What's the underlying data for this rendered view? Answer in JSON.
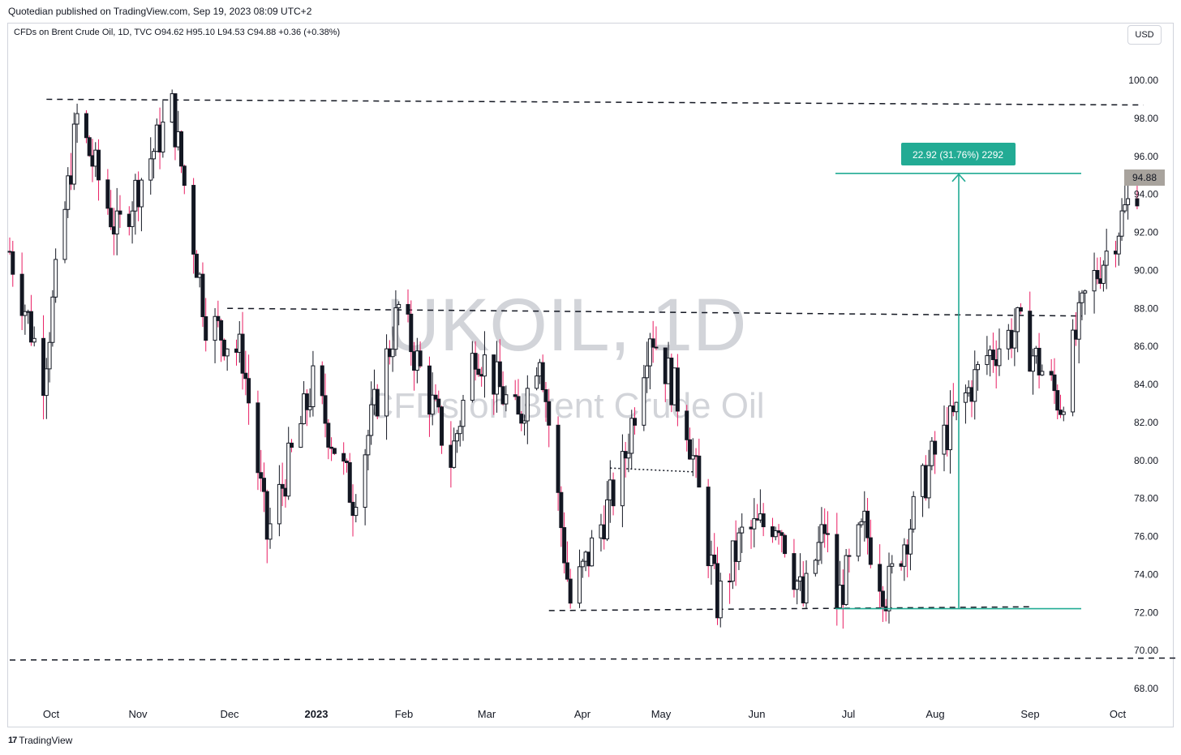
{
  "header": {
    "text": "Quotedian published on TradingView.com, Sep 19, 2023 08:09 UTC+2"
  },
  "legend": {
    "text": "CFDs on Brent Crude Oil, 1D, TVC  O94.62  H95.10  L94.53  C94.88  +0.36 (+0.38%)"
  },
  "currency_button": {
    "label": "USD"
  },
  "watermark": {
    "symbol": "UKOIL, 1D",
    "name": "CFDs on Brent Crude Oil"
  },
  "footer": {
    "logo": "17",
    "brand": "TradingView"
  },
  "colors": {
    "up": "#ffffff",
    "down": "#e91e63",
    "body_up_outline": "#131722",
    "body_down": "#131722",
    "teal": "#22ab94",
    "price_tag": "#a8a39d"
  },
  "chart_data": {
    "type": "candlestick",
    "ylim": [
      67,
      101.5
    ],
    "y_ticks": [
      "68.00",
      "70.00",
      "72.00",
      "74.00",
      "76.00",
      "78.00",
      "80.00",
      "82.00",
      "84.00",
      "86.00",
      "88.00",
      "90.00",
      "92.00",
      "94.00",
      "96.00",
      "98.00",
      "100.00"
    ],
    "x_ticks": [
      {
        "label": "Oct",
        "bold": false
      },
      {
        "label": "Nov",
        "bold": false
      },
      {
        "label": "Dec",
        "bold": false
      },
      {
        "label": "2023",
        "bold": true
      },
      {
        "label": "Feb",
        "bold": false
      },
      {
        "label": "Mar",
        "bold": false
      },
      {
        "label": "Apr",
        "bold": false
      },
      {
        "label": "May",
        "bold": false
      },
      {
        "label": "Jun",
        "bold": false
      },
      {
        "label": "Jul",
        "bold": false
      },
      {
        "label": "Aug",
        "bold": false
      },
      {
        "label": "Sep",
        "bold": false
      },
      {
        "label": "Oct",
        "bold": false
      }
    ],
    "last_price": "94.88",
    "measure_label": "22.92 (31.76%) 2292",
    "measure": {
      "from_price": 72.2,
      "to_price": 95.1
    },
    "horizontal_lines": [
      {
        "style": "dashed",
        "from_date": "2022-09-27",
        "to_date": "2023-09-20",
        "price_start": 99.0,
        "price_end": 98.7
      },
      {
        "style": "dashed",
        "from_date": "2022-11-25",
        "to_date": "2023-08-31",
        "price_start": 88.0,
        "price_end": 87.6
      },
      {
        "style": "dashed",
        "from_date": "2023-03-10",
        "to_date": "2023-08-15",
        "price_start": 72.1,
        "price_end": 72.3
      },
      {
        "style": "dashed",
        "from_date": "2022-09-15",
        "to_date": "2023-10-01",
        "price_start": 69.5,
        "price_end": 69.6
      },
      {
        "style": "dotted",
        "from_date": "2023-03-30",
        "to_date": "2023-04-26",
        "price_start": 79.6,
        "price_end": 79.4
      }
    ],
    "key_points": [
      {
        "date": "2022-09-15",
        "close": 91
      },
      {
        "date": "2022-09-26",
        "close": 84.5
      },
      {
        "date": "2022-10-07",
        "close": 98
      },
      {
        "date": "2022-10-20",
        "close": 92
      },
      {
        "date": "2022-11-07",
        "close": 98.5
      },
      {
        "date": "2022-11-18",
        "close": 87.5
      },
      {
        "date": "2022-11-30",
        "close": 85.5
      },
      {
        "date": "2022-12-08",
        "close": 76
      },
      {
        "date": "2022-12-23",
        "close": 84
      },
      {
        "date": "2023-01-05",
        "close": 78
      },
      {
        "date": "2023-01-20",
        "close": 88
      },
      {
        "date": "2023-02-06",
        "close": 80
      },
      {
        "date": "2023-02-14",
        "close": 86
      },
      {
        "date": "2023-02-28",
        "close": 82
      },
      {
        "date": "2023-03-07",
        "close": 86
      },
      {
        "date": "2023-03-17",
        "close": 72.5
      },
      {
        "date": "2023-04-03",
        "close": 79.5
      },
      {
        "date": "2023-04-12",
        "close": 87
      },
      {
        "date": "2023-04-24",
        "close": 82
      },
      {
        "date": "2023-05-04",
        "close": 72.5
      },
      {
        "date": "2023-05-12",
        "close": 76
      },
      {
        "date": "2023-05-24",
        "close": 77
      },
      {
        "date": "2023-06-01",
        "close": 72.5
      },
      {
        "date": "2023-06-08",
        "close": 76.5
      },
      {
        "date": "2023-06-12",
        "close": 72.5
      },
      {
        "date": "2023-06-21",
        "close": 76.5
      },
      {
        "date": "2023-06-28",
        "close": 73
      },
      {
        "date": "2023-07-13",
        "close": 80
      },
      {
        "date": "2023-07-31",
        "close": 85.5
      },
      {
        "date": "2023-08-10",
        "close": 87
      },
      {
        "date": "2023-08-24",
        "close": 83
      },
      {
        "date": "2023-09-01",
        "close": 88.5
      },
      {
        "date": "2023-09-19",
        "close": 94.88
      }
    ]
  }
}
